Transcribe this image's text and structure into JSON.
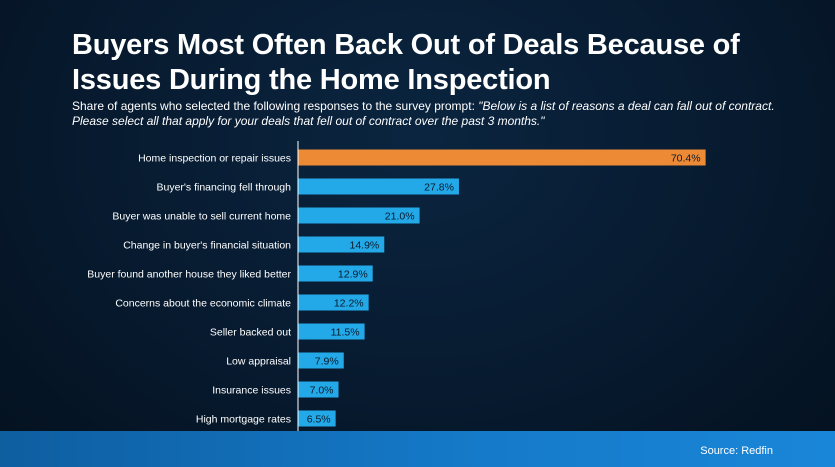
{
  "header": {
    "title": "Buyers Most Often Back Out of Deals Because of Issues During the Home Inspection",
    "subtitle_lead": "Share of agents who selected the following responses to the survey prompt: ",
    "subtitle_quote": "\"Below is a list of reasons a deal can fall out of contract. Please select all that apply for your deals that fell out of contract over the past 3 months.\""
  },
  "footer": {
    "source": "Source: Redfin"
  },
  "colors": {
    "highlight": "#ec8a35",
    "bar": "#23a8e8",
    "axis": "#ffffff",
    "text": "#ffffff"
  },
  "chart_data": {
    "type": "bar",
    "orientation": "horizontal",
    "categories": [
      "Home inspection or repair issues",
      "Buyer's financing fell through",
      "Buyer was unable to sell current home",
      "Change in buyer's financial situation",
      "Buyer found another house they liked better",
      "Concerns about the economic climate",
      "Seller backed out",
      "Low appraisal",
      "Insurance issues",
      "High mortgage rates"
    ],
    "values": [
      70.4,
      27.8,
      21.0,
      14.9,
      12.9,
      12.2,
      11.5,
      7.9,
      7.0,
      6.5
    ],
    "value_labels": [
      "70.4%",
      "27.8%",
      "21.0%",
      "14.9%",
      "12.9%",
      "12.2%",
      "11.5%",
      "7.9%",
      "7.0%",
      "6.5%"
    ],
    "highlighted_index": 0,
    "xlim": [
      0,
      80
    ],
    "grid": false,
    "legend": "none"
  }
}
